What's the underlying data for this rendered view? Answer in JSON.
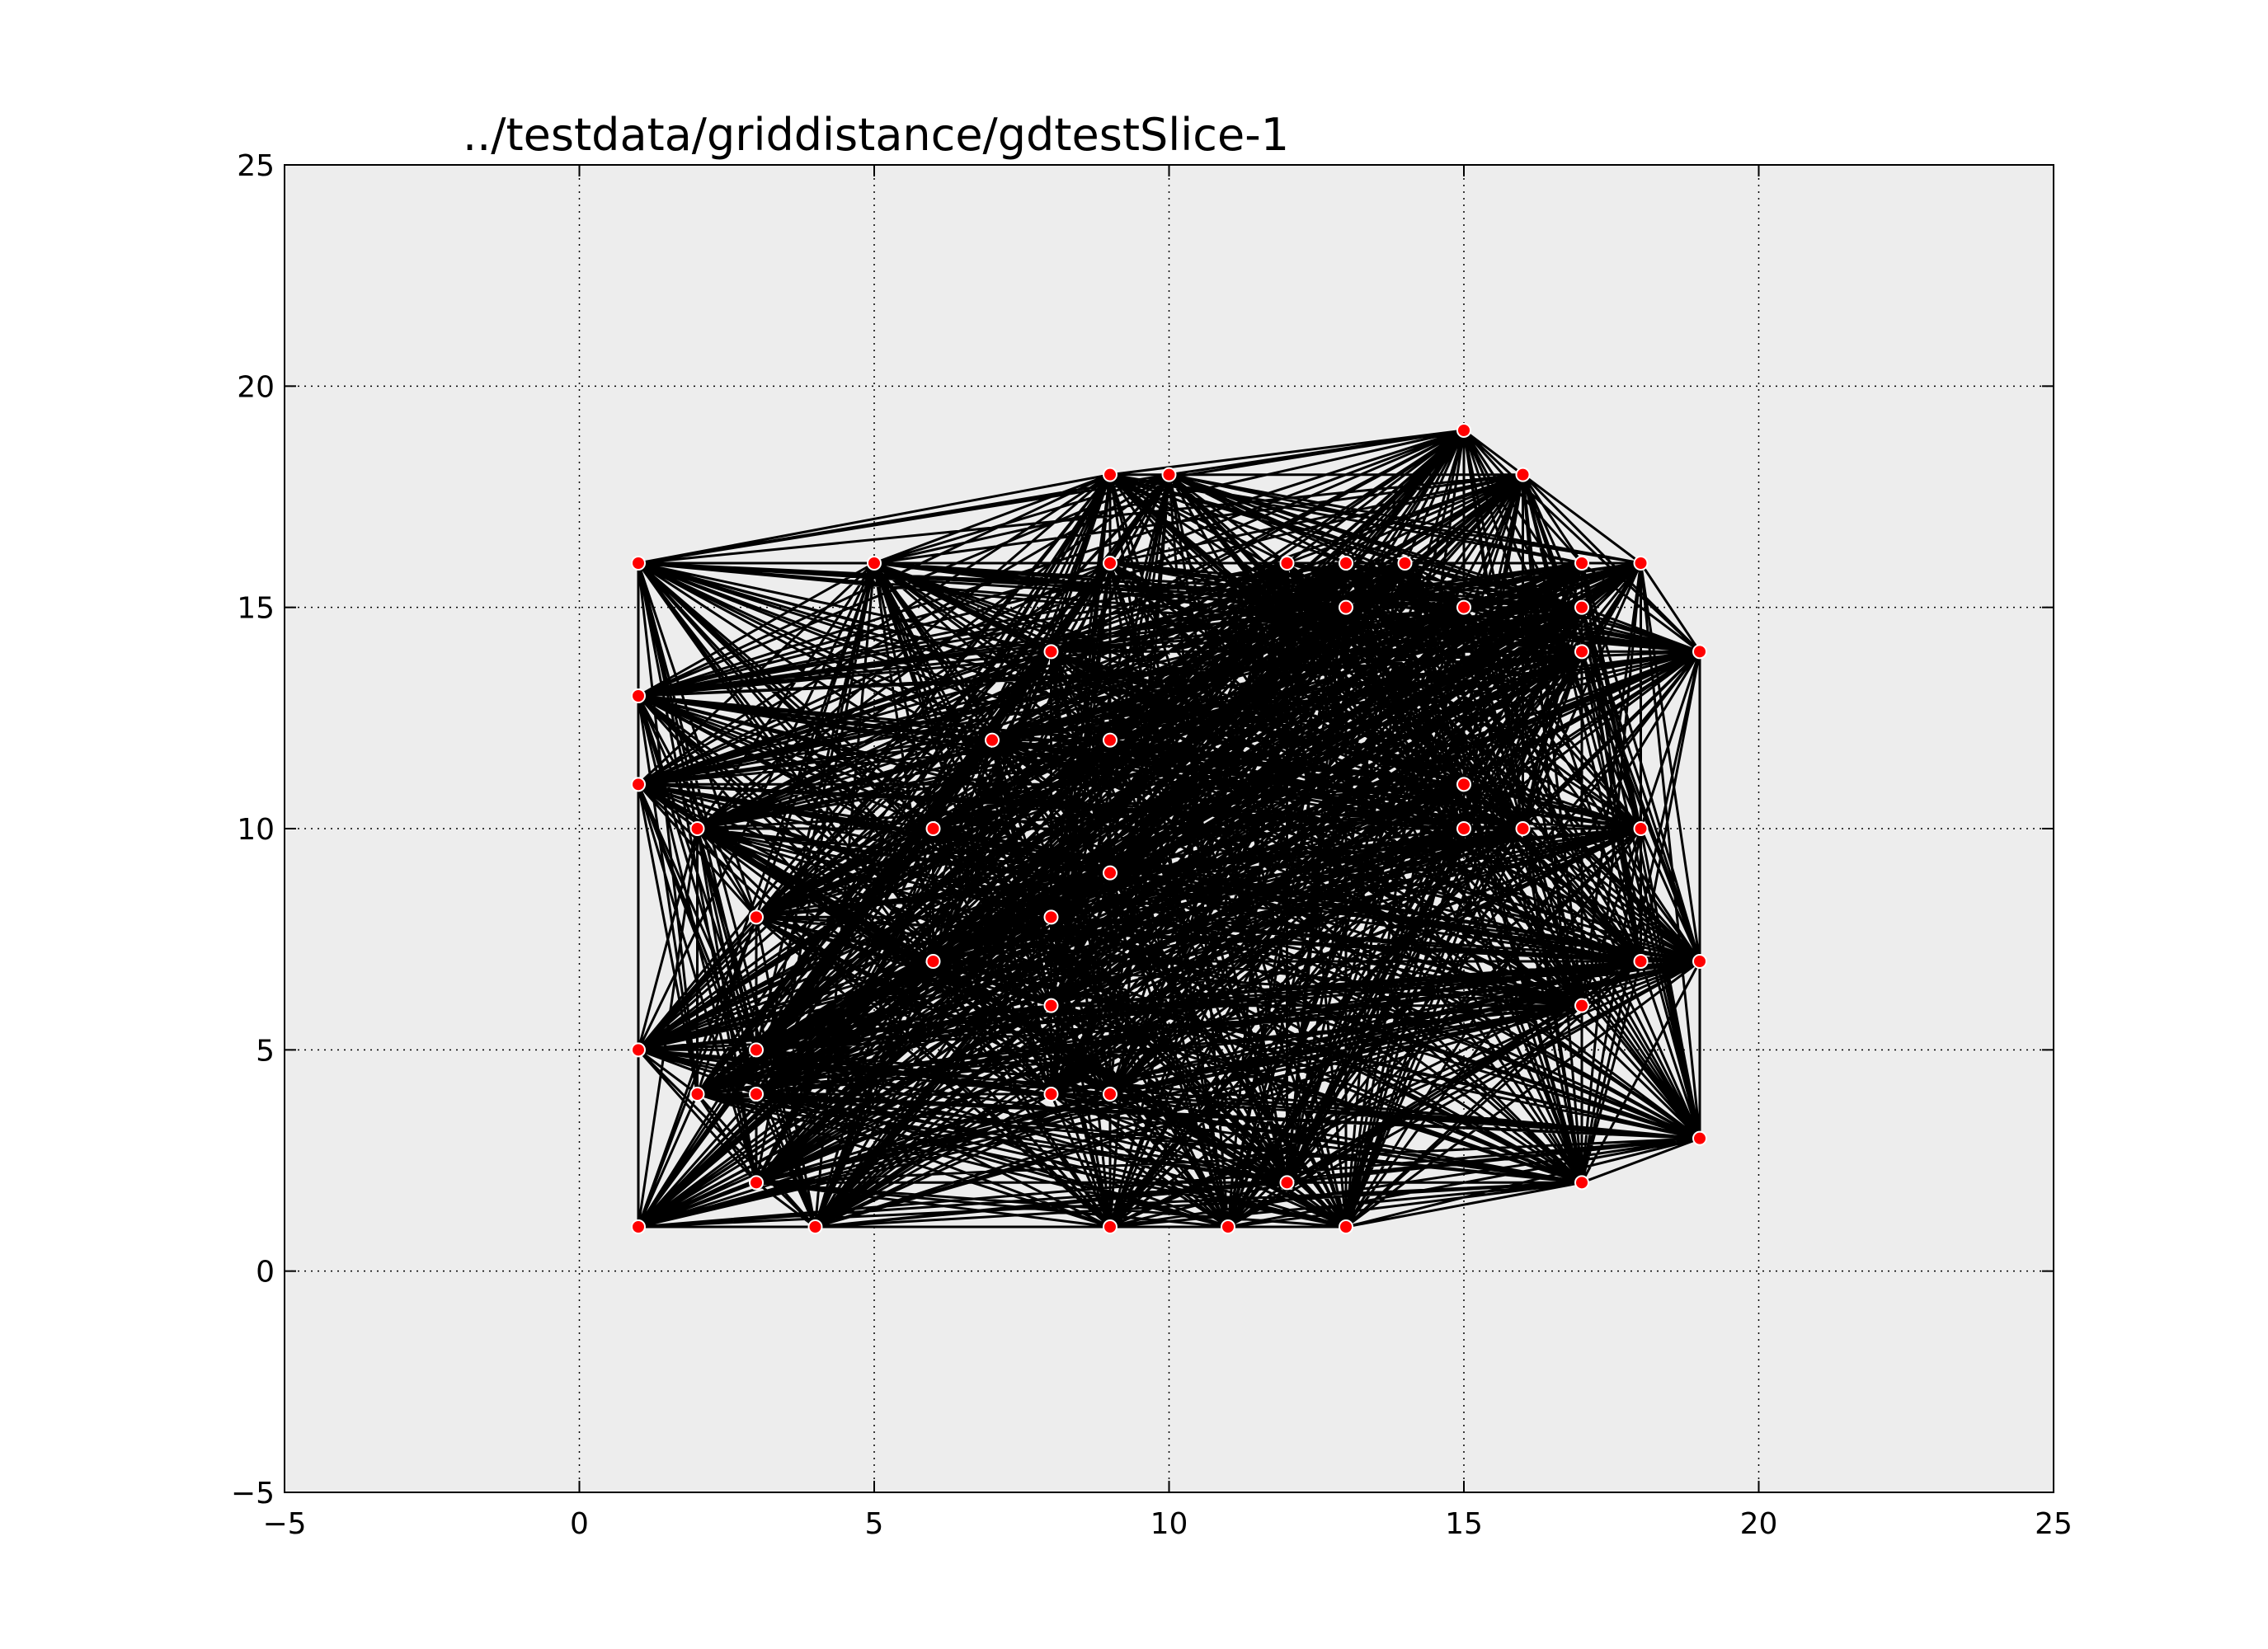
{
  "chart_data": {
    "type": "scatter",
    "title": "../testdata/griddistance/gdtestSlice-1",
    "xlabel": "",
    "ylabel": "",
    "xlim": [
      -5,
      25
    ],
    "ylim": [
      -5,
      25
    ],
    "xticks": [
      -5,
      0,
      5,
      10,
      15,
      20,
      25
    ],
    "yticks": [
      -5,
      0,
      5,
      10,
      15,
      20,
      25
    ],
    "xtick_labels": [
      "−5",
      "0",
      "5",
      "10",
      "15",
      "20",
      "25"
    ],
    "ytick_labels": [
      "−5",
      "0",
      "5",
      "10",
      "15",
      "20",
      "25"
    ],
    "grid": true,
    "edges": "every pair of points is connected by a line",
    "colors": {
      "background": "#ededed",
      "edge": "#000000",
      "marker_fill": "#ff0000",
      "marker_edge": "#ffffff"
    },
    "points": [
      [
        15,
        19
      ],
      [
        9,
        18
      ],
      [
        10,
        18
      ],
      [
        16,
        18
      ],
      [
        1,
        16
      ],
      [
        5,
        16
      ],
      [
        9,
        16
      ],
      [
        12,
        16
      ],
      [
        13,
        16
      ],
      [
        14,
        16
      ],
      [
        17,
        16
      ],
      [
        18,
        16
      ],
      [
        13,
        15
      ],
      [
        15,
        15
      ],
      [
        17,
        15
      ],
      [
        8,
        14
      ],
      [
        17,
        14
      ],
      [
        19,
        14
      ],
      [
        1,
        13
      ],
      [
        7,
        12
      ],
      [
        9,
        12
      ],
      [
        1,
        11
      ],
      [
        15,
        11
      ],
      [
        2,
        10
      ],
      [
        6,
        10
      ],
      [
        15,
        10
      ],
      [
        16,
        10
      ],
      [
        18,
        10
      ],
      [
        9,
        9
      ],
      [
        3,
        8
      ],
      [
        8,
        8
      ],
      [
        6,
        7
      ],
      [
        18,
        7
      ],
      [
        19,
        7
      ],
      [
        8,
        6
      ],
      [
        17,
        6
      ],
      [
        1,
        5
      ],
      [
        3,
        5
      ],
      [
        2,
        4
      ],
      [
        3,
        4
      ],
      [
        8,
        4
      ],
      [
        9,
        4
      ],
      [
        19,
        3
      ],
      [
        3,
        2
      ],
      [
        12,
        2
      ],
      [
        17,
        2
      ],
      [
        1,
        1
      ],
      [
        4,
        1
      ],
      [
        9,
        1
      ],
      [
        11,
        1
      ],
      [
        13,
        1
      ]
    ]
  }
}
